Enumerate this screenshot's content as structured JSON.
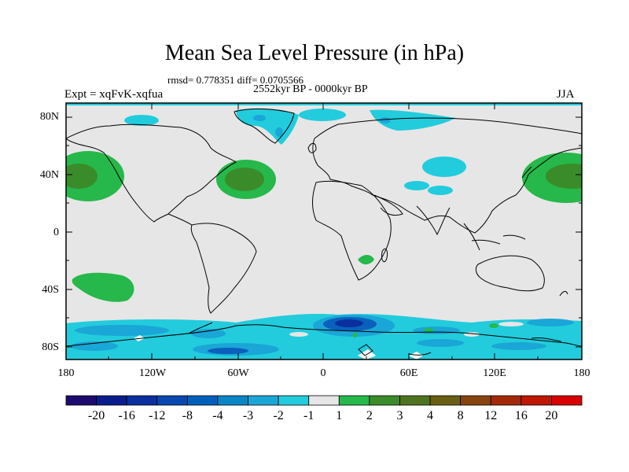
{
  "title": "Mean Sea Level Pressure (in hPa)",
  "stats": "rmsd= 0.778351 diff= 0.0705566",
  "period": "2552kyr BP - 0000kyr BP",
  "experiment": "Expt = xqFvK-xqfua",
  "season": "JJA",
  "lat_labels": [
    "80N",
    "40N",
    "0",
    "40S",
    "80S"
  ],
  "lon_labels": [
    "180",
    "120W",
    "60W",
    "0",
    "60E",
    "120E",
    "180"
  ],
  "colorbar": {
    "labels": [
      "-20",
      "-16",
      "-12",
      "-8",
      "-4",
      "-3",
      "-2",
      "-1",
      "1",
      "2",
      "3",
      "4",
      "8",
      "12",
      "16",
      "20"
    ],
    "colors": [
      "#1d0a6e",
      "#0a1d8c",
      "#0a2f9e",
      "#0a47b0",
      "#0060bc",
      "#0a86c6",
      "#1aa6d6",
      "#22ccdc",
      "#e6e6e6",
      "#26b84a",
      "#3a8c2a",
      "#4f7420",
      "#6a5e14",
      "#87440e",
      "#a32a08",
      "#bf1606",
      "#d90000"
    ]
  },
  "colors": {
    "background": "#e6e6e6",
    "cyan": "#22ccdc",
    "mid_blue": "#1aa6d6",
    "blue": "#0a60bc",
    "dark_blue": "#0a2f9e",
    "green": "#26b84a",
    "dark_green": "#3a8c2a",
    "olive": "#4f7420",
    "ocean_grey": "#e6e6e6"
  }
}
